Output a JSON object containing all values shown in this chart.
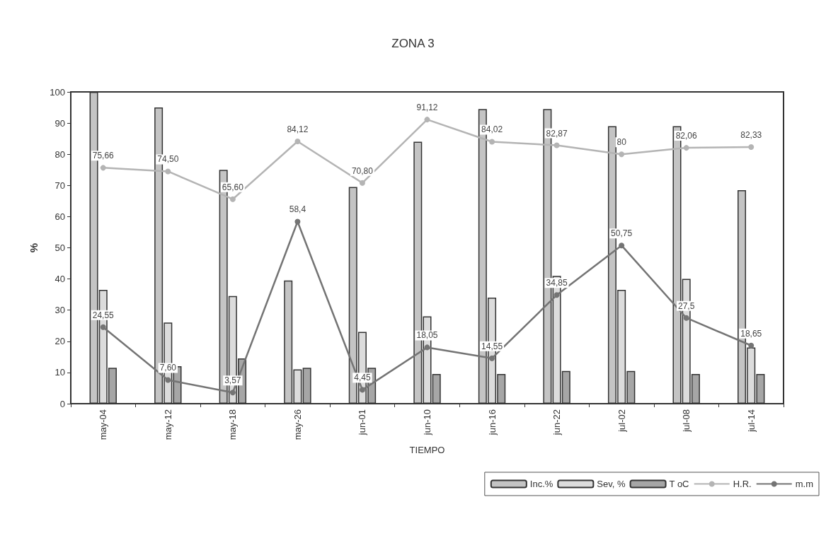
{
  "chart_data": {
    "type": "bar",
    "title": "ZONA 3",
    "xlabel": "TIEMPO",
    "ylabel": "%",
    "categories": [
      "may-04",
      "may-12",
      "may-18",
      "may-26",
      "jun-01",
      "jun-10",
      "jun-16",
      "jun-22",
      "jul-02",
      "jul-08",
      "jul-14"
    ],
    "series": [
      {
        "name": "Inc.%",
        "color": "#c4c4c4",
        "values": [
          100,
          95,
          75,
          39.5,
          69.5,
          84,
          94.5,
          94.5,
          89,
          89,
          68.5
        ]
      },
      {
        "name": "Sev, %",
        "color": "#dcdcdc",
        "values": [
          36.5,
          26,
          34.5,
          11,
          23,
          28,
          34,
          41,
          36.5,
          40,
          18
        ]
      },
      {
        "name": "T oC",
        "color": "#a6a6a6",
        "values": [
          11.5,
          12,
          14.5,
          11.5,
          11.5,
          9.5,
          9.5,
          10.5,
          10.5,
          9.5,
          9.5
        ]
      },
      {
        "name": "H.R.",
        "type": "line",
        "color": "#b4b4b4",
        "values": [
          75.66,
          74.5,
          65.6,
          84.12,
          70.8,
          91.12,
          84.02,
          82.87,
          80,
          82.06,
          82.33
        ],
        "value_labels": [
          "75,66",
          "74,50",
          "65,60",
          "84,12",
          "70,80",
          "91,12",
          "84,02",
          "82,87",
          "80",
          "82,06",
          "82,33"
        ]
      },
      {
        "name": "m.m",
        "type": "line",
        "color": "#747474",
        "values": [
          24.55,
          7.6,
          3.57,
          58.4,
          4.45,
          18.05,
          14.55,
          34.85,
          50.75,
          27.5,
          18.65
        ],
        "value_labels": [
          "24,55",
          "7,60",
          "3,57",
          "58,4",
          "4,45",
          "18,05",
          "14,55",
          "34,85",
          "50,75",
          "27,5",
          "18,65"
        ]
      }
    ],
    "ylim": [
      0,
      100
    ],
    "yticks": [
      0,
      10,
      20,
      30,
      40,
      50,
      60,
      70,
      80,
      90,
      100
    ],
    "grid": false,
    "legend": "bottom right",
    "marker": "circle",
    "line_style": "solid"
  }
}
